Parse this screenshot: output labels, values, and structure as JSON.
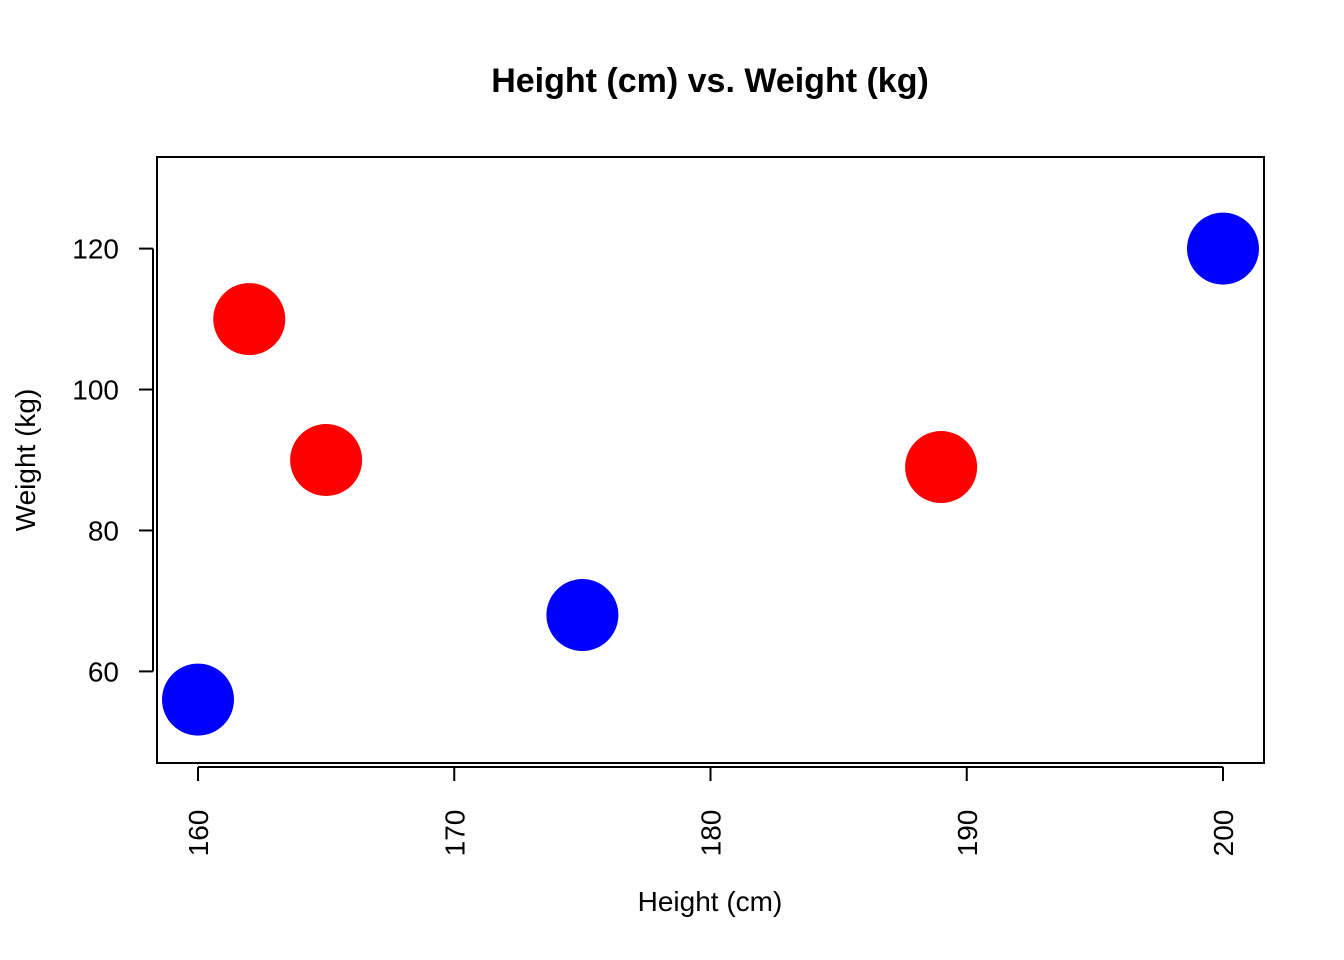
{
  "chart_data": {
    "type": "scatter",
    "title": "Height (cm) vs. Weight (kg)",
    "xlabel": "Height (cm)",
    "ylabel": "Weight (kg)",
    "xlim": [
      158.4,
      201.6
    ],
    "ylim": [
      47,
      133
    ],
    "xticks": [
      160,
      170,
      180,
      190,
      200
    ],
    "yticks": [
      60,
      80,
      100,
      120
    ],
    "grid": false,
    "points": [
      {
        "x": 160,
        "y": 56,
        "color": "#0000ff"
      },
      {
        "x": 162,
        "y": 110,
        "color": "#ff0000"
      },
      {
        "x": 165,
        "y": 90,
        "color": "#ff0000"
      },
      {
        "x": 175,
        "y": 68,
        "color": "#0000ff"
      },
      {
        "x": 189,
        "y": 89,
        "color": "#ff0000"
      },
      {
        "x": 200,
        "y": 120,
        "color": "#0000ff"
      }
    ]
  }
}
